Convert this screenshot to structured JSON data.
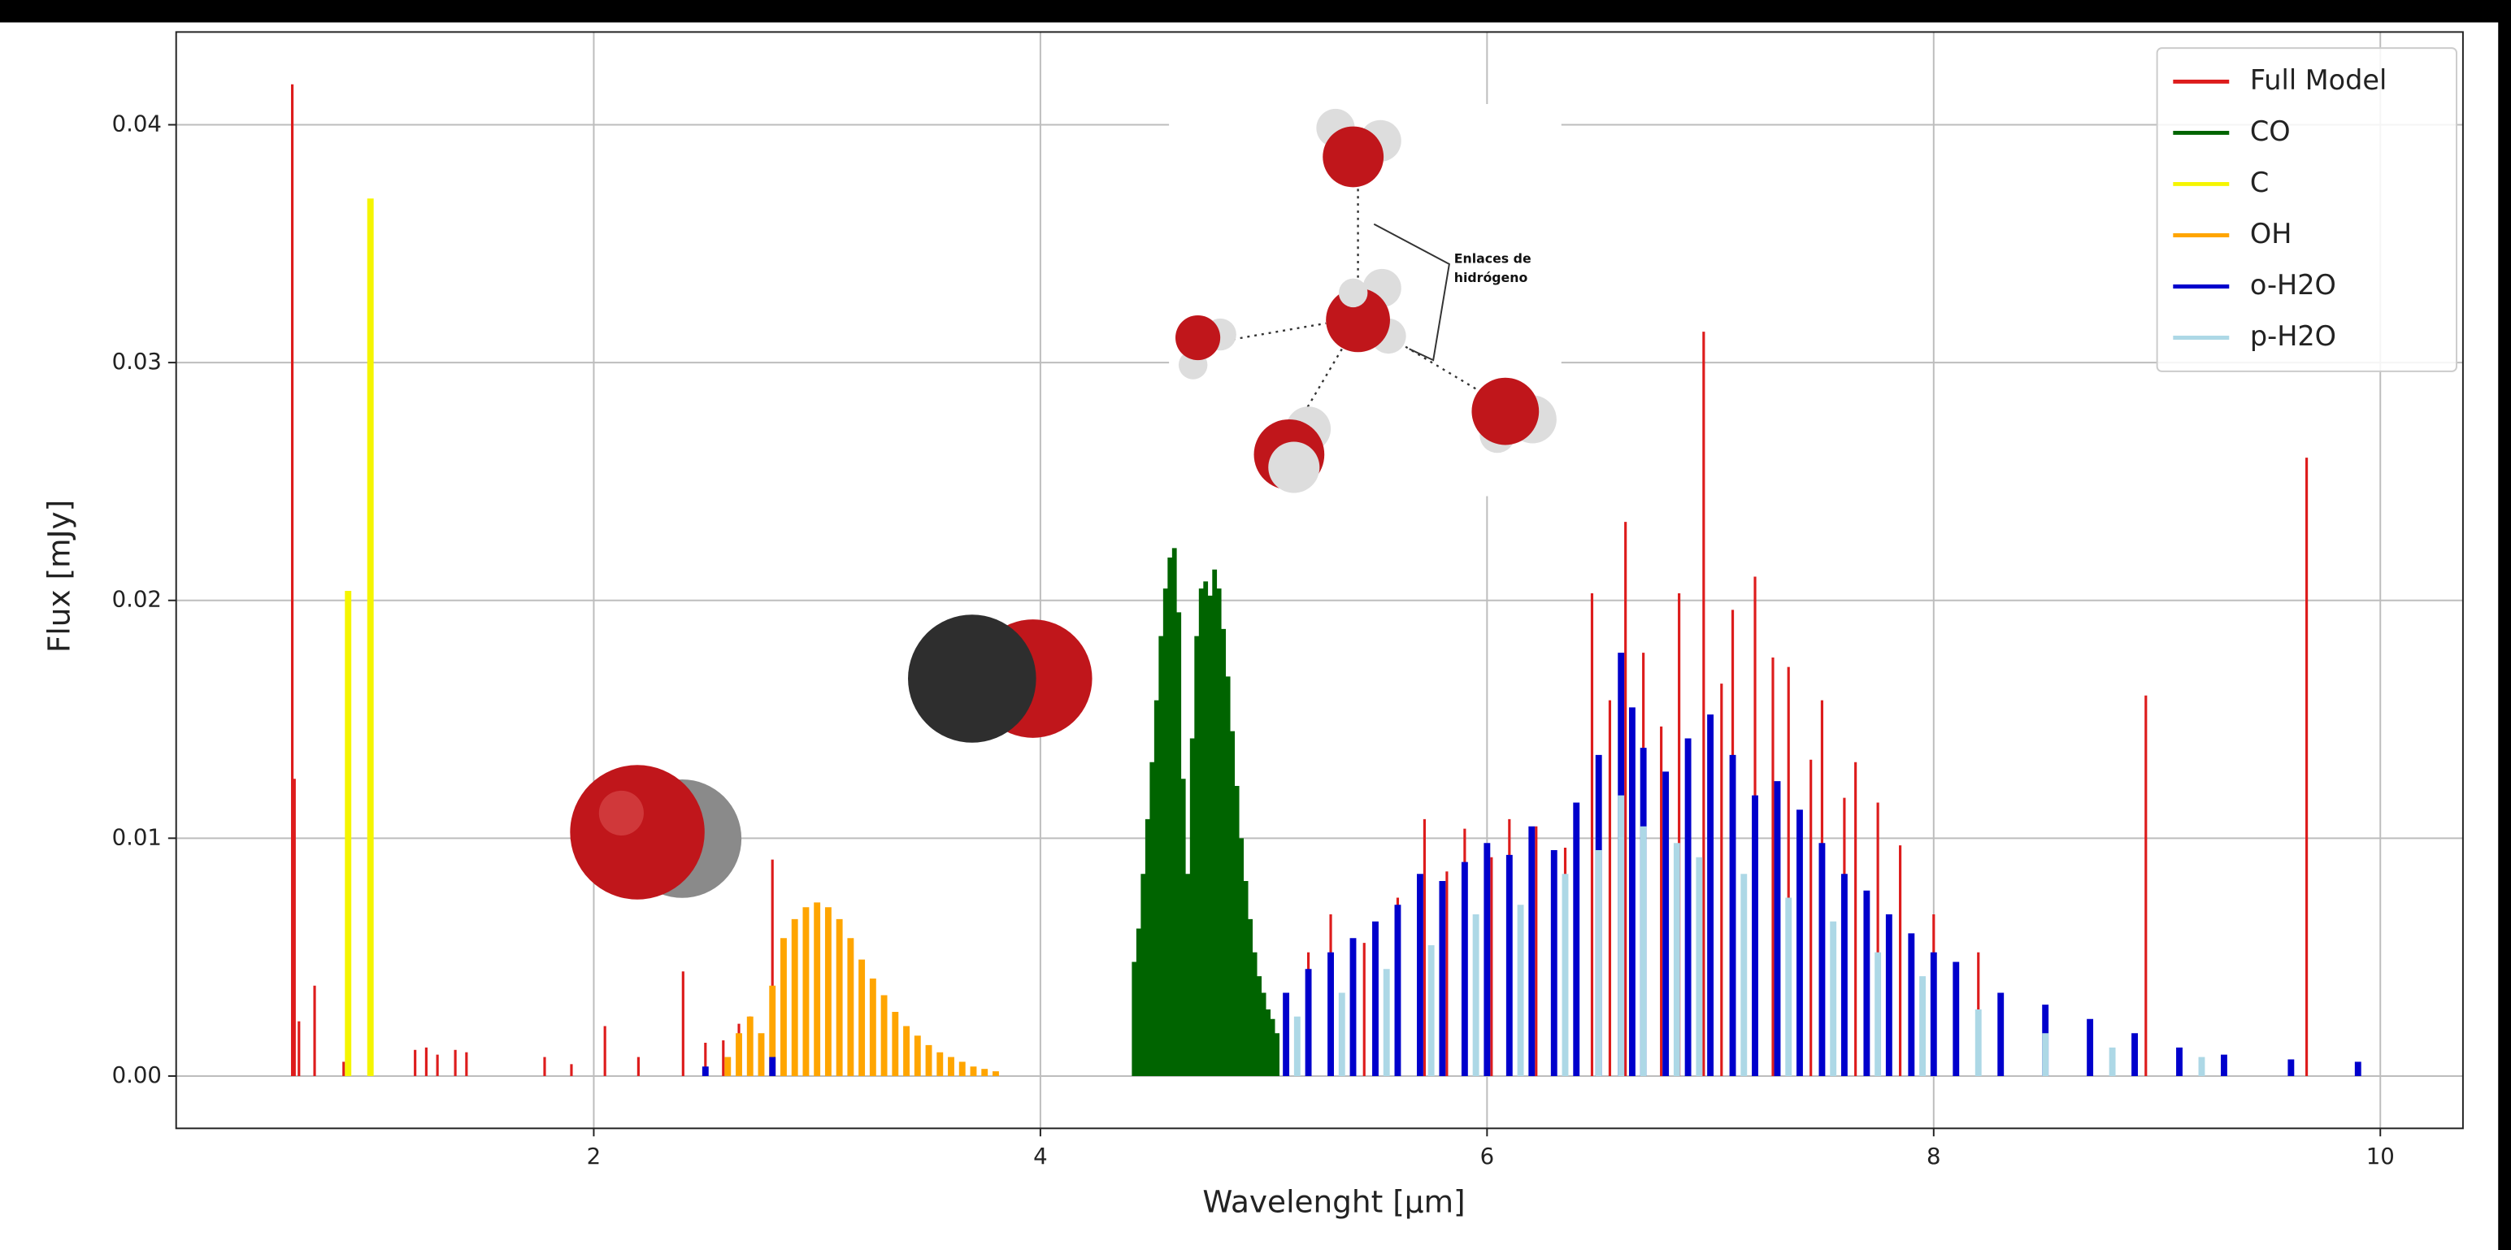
{
  "chart_data": {
    "type": "spectrum",
    "x_label": "Wavelenght [µm]",
    "y_label": "Flux [mJy]",
    "xlim": [
      0.13,
      10.37
    ],
    "ylim": [
      -0.0022,
      0.0439
    ],
    "xticks": [
      2,
      4,
      6,
      8,
      10
    ],
    "yticks": [
      {
        "value": 0,
        "label": "0.00"
      },
      0.01,
      0.02,
      0.03,
      0.04
    ],
    "grid": true,
    "legend": "upper right",
    "annotations": [
      "Enlaces de",
      "hidrógeno"
    ],
    "series": [
      {
        "name": "Full Model",
        "color": "#dd1c1c",
        "x": [
          0.65,
          0.66,
          0.68,
          0.75,
          0.88,
          1.2,
          1.25,
          1.3,
          1.38,
          1.43,
          1.78,
          1.9,
          2.05,
          2.2,
          2.4,
          2.5,
          2.58,
          2.65,
          2.7,
          2.8,
          2.85,
          5.2,
          5.3,
          5.45,
          5.6,
          5.72,
          5.82,
          5.9,
          6.02,
          6.1,
          6.22,
          6.35,
          6.47,
          6.55,
          6.62,
          6.7,
          6.78,
          6.86,
          6.97,
          7.05,
          7.1,
          7.2,
          7.28,
          7.35,
          7.45,
          7.5,
          7.6,
          7.65,
          7.75,
          7.85,
          8.0,
          8.2,
          8.95,
          9.67
        ],
        "values": [
          0.0417,
          0.0125,
          0.0023,
          0.0038,
          0.0006,
          0.0011,
          0.0012,
          0.0009,
          0.0011,
          0.001,
          0.0008,
          0.0005,
          0.0021,
          0.0008,
          0.0044,
          0.0014,
          0.0015,
          0.0022,
          0.0025,
          0.0091,
          0.0055,
          0.0052,
          0.0068,
          0.0056,
          0.0075,
          0.0108,
          0.0086,
          0.0104,
          0.0092,
          0.0108,
          0.0105,
          0.0096,
          0.0203,
          0.0158,
          0.0233,
          0.0178,
          0.0147,
          0.0203,
          0.0313,
          0.0165,
          0.0196,
          0.021,
          0.0176,
          0.0172,
          0.0133,
          0.0158,
          0.0117,
          0.0132,
          0.0115,
          0.0097,
          0.0068,
          0.0052,
          0.016,
          0.026
        ]
      },
      {
        "name": "CO",
        "color": "#006400",
        "x": [
          4.42,
          4.44,
          4.46,
          4.48,
          4.5,
          4.52,
          4.54,
          4.56,
          4.58,
          4.6,
          4.62,
          4.64,
          4.66,
          4.68,
          4.7,
          4.72,
          4.74,
          4.76,
          4.78,
          4.8,
          4.82,
          4.84,
          4.86,
          4.88,
          4.9,
          4.92,
          4.94,
          4.96,
          4.98,
          5.0,
          5.02,
          5.04,
          5.06
        ],
        "values": [
          0.0048,
          0.0062,
          0.0085,
          0.0108,
          0.0132,
          0.0158,
          0.0185,
          0.0205,
          0.0218,
          0.0222,
          0.0195,
          0.0125,
          0.0085,
          0.0142,
          0.0185,
          0.0205,
          0.0208,
          0.0202,
          0.0213,
          0.0205,
          0.0188,
          0.0168,
          0.0145,
          0.0122,
          0.01,
          0.0082,
          0.0066,
          0.0052,
          0.0042,
          0.0035,
          0.0028,
          0.0024,
          0.0018
        ]
      },
      {
        "name": "C",
        "color": "#f5f500",
        "x": [
          0.9,
          1.0
        ],
        "values": [
          0.0204,
          0.0369
        ]
      },
      {
        "name": "OH",
        "color": "#ffa500",
        "x": [
          2.6,
          2.65,
          2.7,
          2.75,
          2.8,
          2.85,
          2.9,
          2.95,
          3.0,
          3.05,
          3.1,
          3.15,
          3.2,
          3.25,
          3.3,
          3.35,
          3.4,
          3.45,
          3.5,
          3.55,
          3.6,
          3.65,
          3.7,
          3.75,
          3.8
        ],
        "values": [
          0.0008,
          0.0018,
          0.0025,
          0.0018,
          0.0038,
          0.0058,
          0.0066,
          0.0071,
          0.0073,
          0.0071,
          0.0066,
          0.0058,
          0.0049,
          0.0041,
          0.0034,
          0.0027,
          0.0021,
          0.0017,
          0.0013,
          0.001,
          0.0008,
          0.0006,
          0.0004,
          0.0003,
          0.0002
        ]
      },
      {
        "name": "o-H2O",
        "color": "#0000cc",
        "x": [
          2.5,
          2.8,
          5.1,
          5.2,
          5.3,
          5.4,
          5.5,
          5.6,
          5.7,
          5.8,
          5.9,
          6.0,
          6.1,
          6.2,
          6.3,
          6.4,
          6.5,
          6.6,
          6.65,
          6.7,
          6.8,
          6.9,
          7.0,
          7.1,
          7.2,
          7.3,
          7.4,
          7.5,
          7.6,
          7.7,
          7.8,
          7.9,
          8.0,
          8.1,
          8.3,
          8.5,
          8.7,
          8.9,
          9.1,
          9.3,
          9.6,
          9.9
        ],
        "values": [
          0.0004,
          0.0008,
          0.0035,
          0.0045,
          0.0052,
          0.0058,
          0.0065,
          0.0072,
          0.0085,
          0.0082,
          0.009,
          0.0098,
          0.0093,
          0.0105,
          0.0095,
          0.0115,
          0.0135,
          0.0178,
          0.0155,
          0.0138,
          0.0128,
          0.0142,
          0.0152,
          0.0135,
          0.0118,
          0.0124,
          0.0112,
          0.0098,
          0.0085,
          0.0078,
          0.0068,
          0.006,
          0.0052,
          0.0048,
          0.0035,
          0.003,
          0.0024,
          0.0018,
          0.0012,
          0.0009,
          0.0007,
          0.0006
        ]
      },
      {
        "name": "p-H2O",
        "color": "#add8e6",
        "x": [
          5.15,
          5.35,
          5.55,
          5.75,
          5.95,
          6.15,
          6.35,
          6.5,
          6.6,
          6.7,
          6.85,
          6.95,
          7.15,
          7.35,
          7.55,
          7.75,
          7.95,
          8.2,
          8.5,
          8.8,
          9.2
        ],
        "values": [
          0.0025,
          0.0035,
          0.0045,
          0.0055,
          0.0068,
          0.0072,
          0.0085,
          0.0095,
          0.0118,
          0.0105,
          0.0098,
          0.0092,
          0.0085,
          0.0075,
          0.0065,
          0.0052,
          0.0042,
          0.0028,
          0.0018,
          0.0012,
          0.0008
        ]
      }
    ]
  }
}
